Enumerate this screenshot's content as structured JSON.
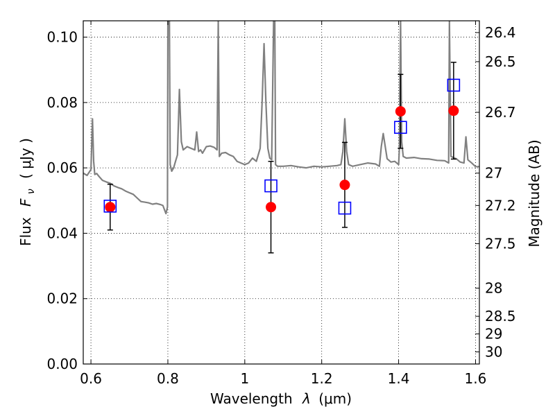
{
  "chart_data": {
    "type": "scatter",
    "title": "",
    "xlabel_text": "Wavelength",
    "xlabel_symbol": "λ",
    "xlabel_unit": "(μm)",
    "ylabel_text": "Flux",
    "ylabel_symbol": "F",
    "ylabel_subscript": "ν",
    "ylabel_unit": "( μJy )",
    "y2label": "Magnitude (AB)",
    "xlim": [
      0.58,
      1.61
    ],
    "ylim": [
      0.0,
      0.105
    ],
    "grid": true,
    "x_ticks": [
      0.6,
      0.8,
      1.0,
      1.2,
      1.4,
      1.6
    ],
    "x_tick_labels": [
      "0.6",
      "0.8",
      "1",
      "1.2",
      "1.4",
      "1.6"
    ],
    "y_ticks": [
      0.0,
      0.02,
      0.04,
      0.06,
      0.08,
      0.1
    ],
    "y_tick_labels": [
      "0.00",
      "0.02",
      "0.04",
      "0.06",
      "0.08",
      "0.10"
    ],
    "y2_ticks": [
      {
        "label": "26.4",
        "flux": 0.1014
      },
      {
        "label": "26.5",
        "flux": 0.0925
      },
      {
        "label": "26.7",
        "flux": 0.077
      },
      {
        "label": "27",
        "flux": 0.0584
      },
      {
        "label": "27.2",
        "flux": 0.0485
      },
      {
        "label": "27.5",
        "flux": 0.0368
      },
      {
        "label": "28",
        "flux": 0.0232
      },
      {
        "label": "28.5",
        "flux": 0.0146
      },
      {
        "label": "29",
        "flux": 0.0092
      },
      {
        "label": "30",
        "flux": 0.0037
      }
    ],
    "series": [
      {
        "kind": "observed",
        "marker": "circle",
        "color": "#ff0000",
        "x": [
          0.65,
          1.068,
          1.26,
          1.405,
          1.543
        ],
        "y": [
          0.048,
          0.048,
          0.0548,
          0.0773,
          0.0775
        ],
        "yerr": [
          0.007,
          0.014,
          0.013,
          0.0113,
          0.0148
        ]
      },
      {
        "kind": "model",
        "marker": "square-open",
        "color": "#0000ff",
        "x": [
          0.65,
          1.068,
          1.26,
          1.405,
          1.543
        ],
        "y": [
          0.0483,
          0.0545,
          0.0477,
          0.0724,
          0.0853
        ]
      },
      {
        "kind": "sed",
        "type": "line",
        "color": "#808080",
        "x": [
          0.58,
          0.59,
          0.6,
          0.604,
          0.607,
          0.61,
          0.615,
          0.62,
          0.63,
          0.64,
          0.65,
          0.66,
          0.67,
          0.68,
          0.69,
          0.7,
          0.71,
          0.72,
          0.73,
          0.74,
          0.75,
          0.76,
          0.77,
          0.78,
          0.787,
          0.795,
          0.799,
          0.8,
          0.802,
          0.804,
          0.806,
          0.81,
          0.815,
          0.82,
          0.825,
          0.83,
          0.835,
          0.84,
          0.85,
          0.86,
          0.87,
          0.875,
          0.88,
          0.885,
          0.89,
          0.9,
          0.91,
          0.92,
          0.928,
          0.931,
          0.934,
          0.94,
          0.95,
          0.96,
          0.97,
          0.98,
          0.99,
          1.0,
          1.01,
          1.02,
          1.03,
          1.04,
          1.045,
          1.05,
          1.055,
          1.06,
          1.065,
          1.07,
          1.075,
          1.078,
          1.08,
          1.085,
          1.1,
          1.12,
          1.14,
          1.16,
          1.18,
          1.2,
          1.22,
          1.24,
          1.25,
          1.255,
          1.26,
          1.265,
          1.27,
          1.28,
          1.3,
          1.32,
          1.34,
          1.35,
          1.355,
          1.36,
          1.37,
          1.38,
          1.39,
          1.4,
          1.402,
          1.405,
          1.408,
          1.412,
          1.42,
          1.44,
          1.46,
          1.48,
          1.5,
          1.52,
          1.53,
          1.532,
          1.536,
          1.54,
          1.545,
          1.55,
          1.56,
          1.57,
          1.575,
          1.58,
          1.59,
          1.6,
          1.61
        ],
        "y": [
          0.0584,
          0.0577,
          0.0595,
          0.075,
          0.062,
          0.058,
          0.0583,
          0.0575,
          0.0562,
          0.0557,
          0.0553,
          0.0545,
          0.054,
          0.0536,
          0.0529,
          0.0524,
          0.0519,
          0.0508,
          0.0497,
          0.0495,
          0.0493,
          0.0489,
          0.0491,
          0.0488,
          0.0485,
          0.046,
          0.048,
          0.105,
          0.105,
          0.105,
          0.061,
          0.059,
          0.06,
          0.062,
          0.064,
          0.084,
          0.068,
          0.0655,
          0.0665,
          0.066,
          0.0655,
          0.071,
          0.065,
          0.0655,
          0.0645,
          0.0665,
          0.0667,
          0.0663,
          0.0655,
          0.105,
          0.0635,
          0.0645,
          0.0647,
          0.064,
          0.0635,
          0.062,
          0.0615,
          0.061,
          0.0615,
          0.063,
          0.062,
          0.066,
          0.08,
          0.098,
          0.08,
          0.066,
          0.063,
          0.0625,
          0.105,
          0.105,
          0.061,
          0.0605,
          0.0605,
          0.0607,
          0.0603,
          0.06,
          0.0605,
          0.0603,
          0.0605,
          0.0607,
          0.061,
          0.065,
          0.075,
          0.065,
          0.061,
          0.0605,
          0.061,
          0.0615,
          0.0612,
          0.0605,
          0.0665,
          0.0705,
          0.0628,
          0.0618,
          0.062,
          0.061,
          0.066,
          0.105,
          0.068,
          0.0635,
          0.063,
          0.0632,
          0.0628,
          0.0627,
          0.0623,
          0.0622,
          0.0615,
          0.105,
          0.0635,
          0.0633,
          0.063,
          0.0628,
          0.0618,
          0.0615,
          0.0695,
          0.0625,
          0.0615,
          0.0604,
          0.0604
        ]
      }
    ]
  }
}
